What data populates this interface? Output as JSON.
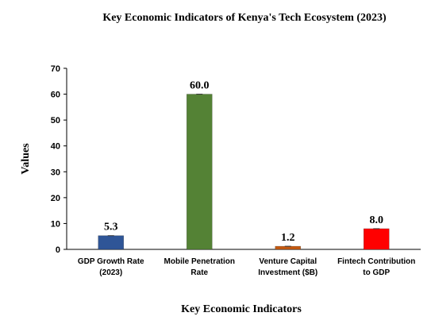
{
  "chart_data": {
    "type": "bar",
    "title": "Key Economic Indicators of Kenya's Tech Ecosystem (2023)",
    "xlabel": "Key Economic Indicators",
    "ylabel": "Values",
    "ylim": [
      0,
      70
    ],
    "yticks": [
      0,
      10,
      20,
      30,
      40,
      50,
      60,
      70
    ],
    "grid": false,
    "legend": "none",
    "categories": [
      [
        "GDP Growth Rate",
        "(2023)"
      ],
      [
        "Mobile Penetration",
        "Rate"
      ],
      [
        "Venture Capital",
        "Investment ($B)"
      ],
      [
        "Fintech Contribution",
        "to GDP"
      ]
    ],
    "values": [
      5.3,
      60.0,
      1.2,
      8.0
    ],
    "data_labels": [
      "5.3",
      "60.0",
      "1.2",
      "8.0"
    ],
    "colors": [
      "#2f5597",
      "#548235",
      "#c55a11",
      "#ff0000"
    ]
  }
}
